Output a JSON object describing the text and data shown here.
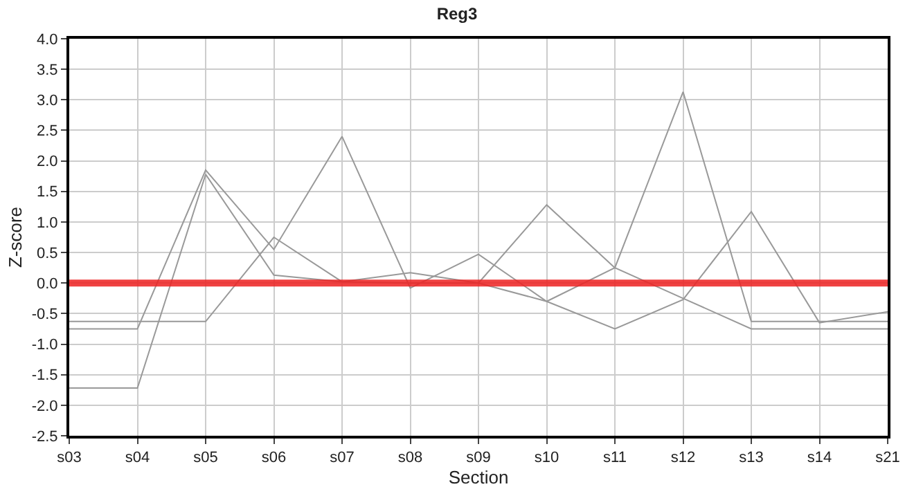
{
  "chart_data": {
    "type": "line",
    "title": "Reg3",
    "xlabel": "Section",
    "ylabel": "Z-score",
    "categories": [
      "s03",
      "s04",
      "s05",
      "s06",
      "s07",
      "s08",
      "s09",
      "s10",
      "s11",
      "s12",
      "s13",
      "s14",
      "s21"
    ],
    "series": [
      {
        "color": "#999999",
        "values": [
          -0.63,
          -0.63,
          -0.63,
          0.75,
          0.02,
          0.17,
          0.0,
          -0.3,
          -0.75,
          -0.27,
          1.17,
          -0.65,
          -0.47
        ]
      },
      {
        "color": "#999999",
        "values": [
          -0.75,
          -0.75,
          1.85,
          0.55,
          2.4,
          -0.08,
          0.47,
          -0.3,
          0.25,
          -0.25,
          -0.75,
          -0.75,
          -0.75
        ]
      },
      {
        "color": "#999999",
        "values": [
          -1.72,
          -1.72,
          1.78,
          0.13,
          0.02,
          0.0,
          0.0,
          1.28,
          0.25,
          3.13,
          -0.63,
          -0.63,
          -0.63
        ]
      }
    ],
    "ylim": [
      -2.5,
      4.0
    ],
    "yticks": [
      {
        "value": -2.5,
        "label": "-2.5"
      },
      {
        "value": -2.0,
        "label": "-2.0"
      },
      {
        "value": -1.5,
        "label": "-1.5"
      },
      {
        "value": -1.0,
        "label": "-1.0"
      },
      {
        "value": -0.5,
        "label": "-0.5"
      },
      {
        "value": 0,
        "label": "0.0"
      },
      {
        "value": 0.5,
        "label": "0.5"
      },
      {
        "value": 1.0,
        "label": "1.0"
      },
      {
        "value": 1.5,
        "label": "1.5"
      },
      {
        "value": 2.0,
        "label": "2.0"
      },
      {
        "value": 2.5,
        "label": "2.5"
      },
      {
        "value": 3.0,
        "label": "3.0"
      },
      {
        "value": 3.5,
        "label": "3.5"
      },
      {
        "value": 4.0,
        "label": "4.0"
      }
    ],
    "ref_lines": [
      {
        "axis": "y",
        "value": 0,
        "color": "#ee2222"
      }
    ],
    "grid": true,
    "marker": "none",
    "line_style": "solid"
  }
}
